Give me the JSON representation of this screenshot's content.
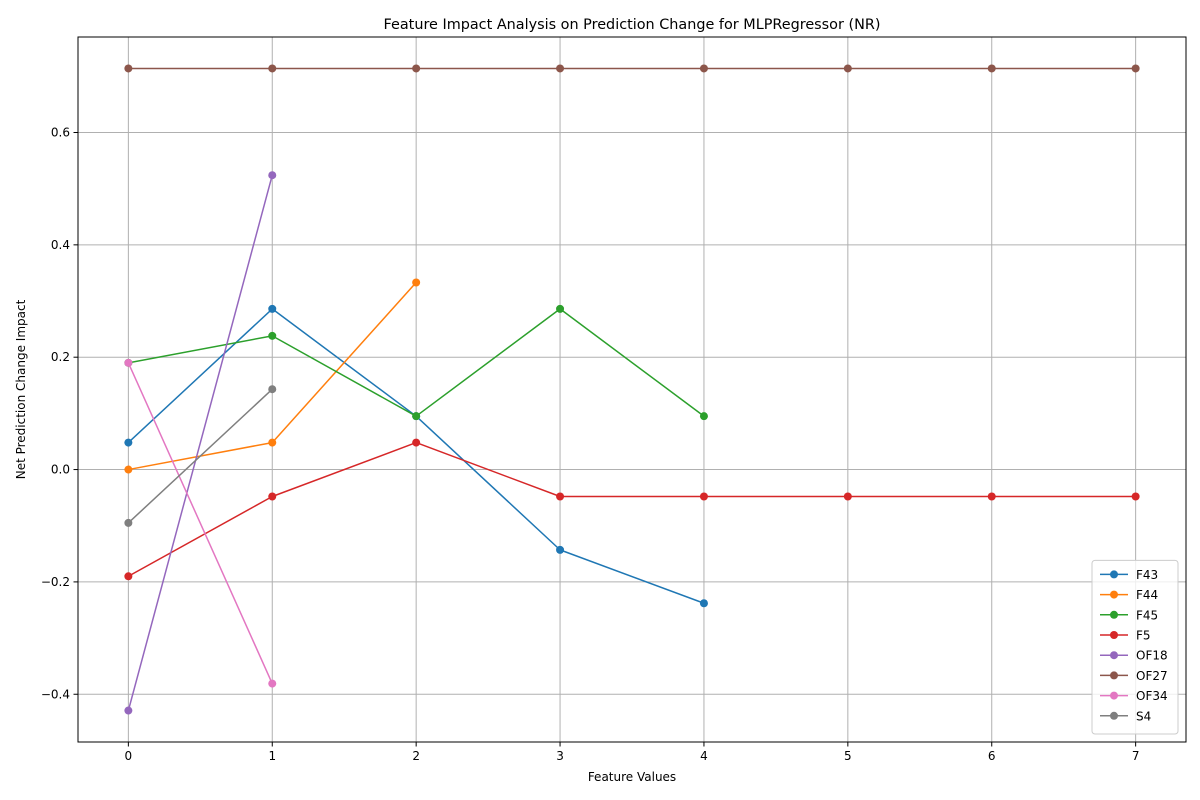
{
  "chart_data": {
    "type": "line",
    "title": "Feature Impact Analysis on Prediction Change for MLPRegressor (NR)",
    "xlabel": "Feature Values",
    "ylabel": "Net Prediction Change Impact",
    "xlim": [
      -0.35,
      7.35
    ],
    "ylim": [
      -0.485,
      0.77
    ],
    "xticks": [
      0,
      1,
      2,
      3,
      4,
      5,
      6,
      7
    ],
    "yticks": [
      -0.4,
      -0.2,
      0.0,
      0.2,
      0.4,
      0.6
    ],
    "ytick_labels": [
      "−0.4",
      "−0.2",
      "0.0",
      "0.2",
      "0.4",
      "0.6"
    ],
    "grid": true,
    "legend_position": "lower-right",
    "series": [
      {
        "name": "F43",
        "color": "#1f77b4",
        "x": [
          0,
          1,
          2,
          3,
          4
        ],
        "y": [
          0.048,
          0.286,
          0.095,
          -0.143,
          -0.238
        ]
      },
      {
        "name": "F44",
        "color": "#ff7f0e",
        "x": [
          0,
          1,
          2
        ],
        "y": [
          0.0,
          0.048,
          0.333
        ]
      },
      {
        "name": "F45",
        "color": "#2ca02c",
        "x": [
          0,
          1,
          2,
          3,
          4
        ],
        "y": [
          0.19,
          0.238,
          0.095,
          0.286,
          0.095
        ]
      },
      {
        "name": "F5",
        "color": "#d62728",
        "x": [
          0,
          1,
          2,
          3,
          4,
          5,
          6,
          7
        ],
        "y": [
          -0.19,
          -0.048,
          0.048,
          -0.048,
          -0.048,
          -0.048,
          -0.048,
          -0.048
        ]
      },
      {
        "name": "OF18",
        "color": "#9467bd",
        "x": [
          0,
          1
        ],
        "y": [
          -0.429,
          0.524
        ]
      },
      {
        "name": "OF27",
        "color": "#8c564b",
        "x": [
          0,
          1,
          2,
          3,
          4,
          5,
          6,
          7
        ],
        "y": [
          0.714,
          0.714,
          0.714,
          0.714,
          0.714,
          0.714,
          0.714,
          0.714
        ]
      },
      {
        "name": "OF34",
        "color": "#e377c2",
        "x": [
          0,
          1
        ],
        "y": [
          0.19,
          -0.381
        ]
      },
      {
        "name": "S4",
        "color": "#7f7f7f",
        "x": [
          0,
          1
        ],
        "y": [
          -0.095,
          0.143
        ]
      }
    ]
  }
}
